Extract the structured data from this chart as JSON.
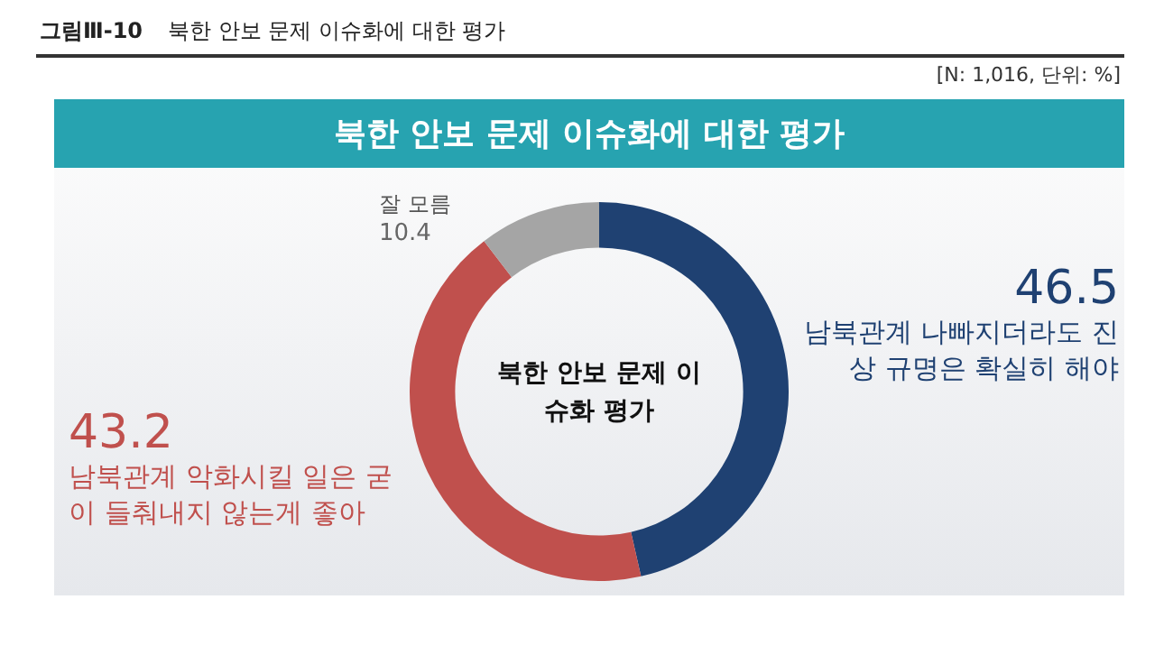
{
  "chart_data": {
    "type": "donut",
    "title": "북한 안보 문제 이슈화에 대한 평가",
    "subtitle": "북한 안보 문제 이슈화에 대한 평가",
    "annotations": [
      "그림Ⅲ-10",
      "[N: 1,016, 단위: %]",
      "북한 안보 문제 이슈화 평가"
    ],
    "categories": [
      "남북관계 나빠지더라도 진상 규명은 확실히 해야",
      "남북관계 악화시킬 일은 굳이 들춰내지 않는게 좋아",
      "잘 모름"
    ],
    "values": [
      46.5,
      43.2,
      10.4
    ],
    "colors": [
      "#1f4172",
      "#c0504d",
      "#a5a5a5"
    ],
    "data_labels": true,
    "legend": false
  }
}
